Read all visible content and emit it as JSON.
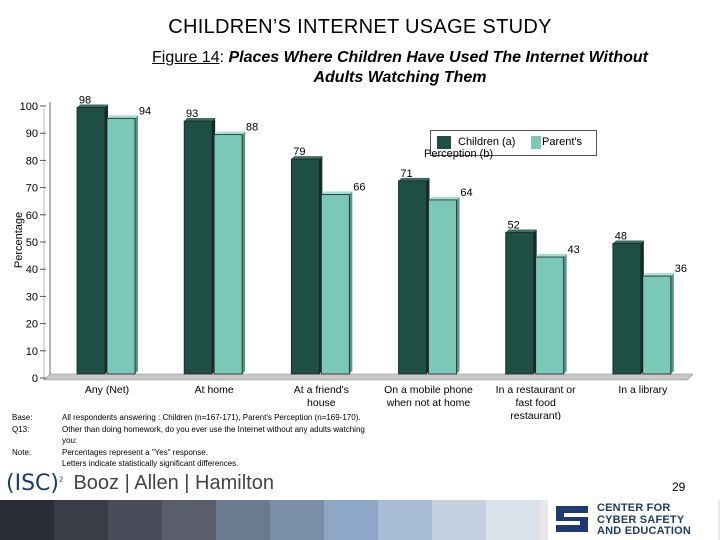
{
  "slide_title": "CHILDREN’S INTERNET USAGE STUDY",
  "figure_label": "Figure 14",
  "figure_sep": ": ",
  "figure_title": "Places Where Children Have Used The Internet Without Adults Watching Them",
  "chart_data": {
    "type": "bar",
    "ylabel": "Percentage",
    "ylim": [
      0,
      100
    ],
    "yticks": [
      0,
      10,
      20,
      30,
      40,
      50,
      60,
      70,
      80,
      90,
      100
    ],
    "categories": [
      "Any (Net)",
      "At home",
      "At a friend's house",
      "On a mobile phone when not at home",
      "In a restaurant or fast food restaurant)",
      "In a library"
    ],
    "category_lines": [
      [
        "Any (Net)"
      ],
      [
        "At home"
      ],
      [
        "At a friend's",
        "house"
      ],
      [
        "On a mobile phone",
        "when not at home"
      ],
      [
        "In a restaurant or",
        "fast food",
        "restaurant)"
      ],
      [
        "In a library"
      ]
    ],
    "series": [
      {
        "name": "Children (a)",
        "values": [
          98,
          93,
          79,
          71,
          52,
          48
        ],
        "color": "#1f4e45"
      },
      {
        "name": "Parent's Perception (b)",
        "values": [
          94,
          88,
          66,
          64,
          43,
          36
        ],
        "color": "#7cc8b7"
      }
    ],
    "legend": {
      "line1_a": "Children (a)",
      "line2_a": "Perception (b)",
      "line1_b": "Parent's"
    }
  },
  "notes": [
    {
      "key": "Base:",
      "text": "All respondents answering : Children (n=167-171), Parent's Perception (n=169-170)."
    },
    {
      "key": "Q13:",
      "text": "Other than doing homework, do you ever use the Internet without any adults watching you:"
    },
    {
      "key": "Note:",
      "text": "Percentages represent a \"Yes\" response."
    },
    {
      "key": "",
      "text": "Letters indicate statistically significant differences."
    }
  ],
  "logos": {
    "isc": "(ISC)",
    "isc_sup": "2",
    "booz": "Booz | Allen | Hamilton",
    "ccse_line1": "CENTER FOR",
    "ccse_line2": "CYBER SAFETY",
    "ccse_line3": "AND EDUCATION"
  },
  "page_number": "29",
  "stripe_colors": [
    "#2b2d36",
    "#3a3d48",
    "#4a4d59",
    "#5a5e6b",
    "#6a7a90",
    "#7b8ea8",
    "#8ea7c6",
    "#a9bdd6",
    "#c3d1e2",
    "#dbe3ec"
  ]
}
